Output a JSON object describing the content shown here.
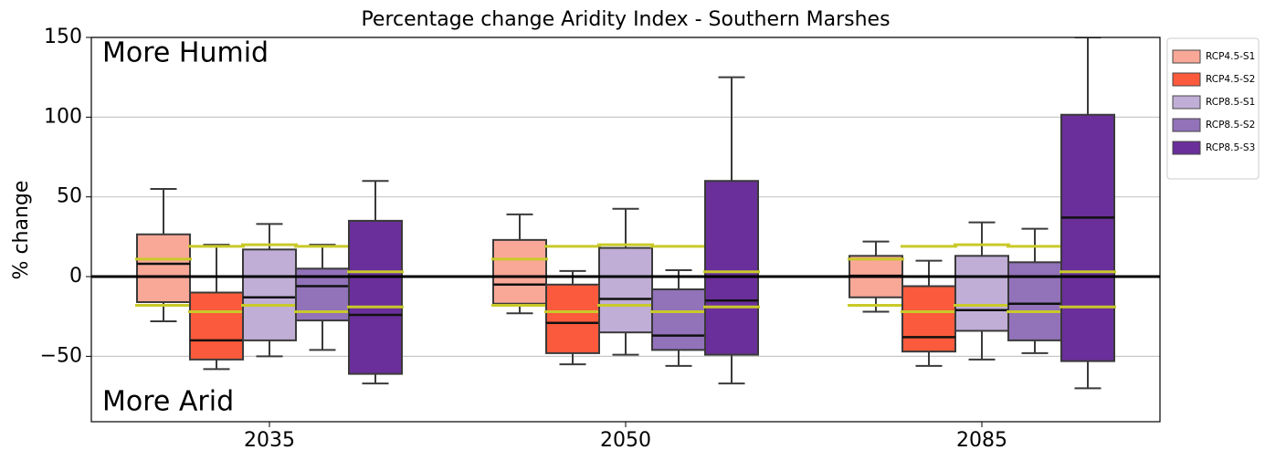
{
  "chart_data": {
    "type": "box",
    "title": "Percentage change Aridity Index - Southern Marshes",
    "ylabel": "% change",
    "annotations": [
      {
        "text": "More Humid",
        "color": "#3a9467"
      },
      {
        "text": "More Arid",
        "color": "#d98a4b"
      }
    ],
    "categories": [
      "2035",
      "2050",
      "2085"
    ],
    "ylim": [
      -91,
      150
    ],
    "yticks": [
      {
        "value": -50,
        "label": "−50"
      },
      0,
      50,
      100,
      150
    ],
    "grid": true,
    "reference_line": 0,
    "legend": "outside-upper-right",
    "series": [
      {
        "name": "RCP4.5-S1",
        "color": "#f9a898",
        "whisker_low": [
          -28,
          -23,
          -22
        ],
        "q1": [
          -16,
          -17,
          -13
        ],
        "median": [
          8,
          -5,
          0.5
        ],
        "q3": [
          26.5,
          23,
          13
        ],
        "whisker_high": [
          55,
          39,
          22
        ],
        "reference_upper": [
          11,
          11,
          11
        ],
        "reference_lower": [
          -18,
          -18,
          -18
        ]
      },
      {
        "name": "RCP4.5-S2",
        "color": "#fc5a3c",
        "whisker_low": [
          -58,
          -55,
          -56
        ],
        "q1": [
          -52,
          -48,
          -47
        ],
        "median": [
          -40,
          -29,
          -38
        ],
        "q3": [
          -10,
          -5,
          -6
        ],
        "whisker_high": [
          20,
          3.5,
          10
        ],
        "reference_upper": [
          19,
          19,
          19
        ],
        "reference_lower": [
          -22,
          -22,
          -22
        ]
      },
      {
        "name": "RCP8.5-S1",
        "color": "#c0aed6",
        "whisker_low": [
          -50,
          -49,
          -52
        ],
        "q1": [
          -40,
          -35,
          -34
        ],
        "median": [
          -13,
          -14,
          -21
        ],
        "q3": [
          17,
          18,
          13
        ],
        "whisker_high": [
          33,
          42.5,
          34
        ],
        "reference_upper": [
          20,
          20,
          20
        ],
        "reference_lower": [
          -18,
          -18,
          -18
        ]
      },
      {
        "name": "RCP8.5-S2",
        "color": "#9272b9",
        "whisker_low": [
          -46,
          -56,
          -48
        ],
        "q1": [
          -27.5,
          -46,
          -40
        ],
        "median": [
          -6,
          -37,
          -17
        ],
        "q3": [
          5,
          -8,
          9
        ],
        "whisker_high": [
          20,
          4,
          30
        ],
        "reference_upper": [
          19,
          19,
          19
        ],
        "reference_lower": [
          -22,
          -22,
          -22
        ]
      },
      {
        "name": "RCP8.5-S3",
        "color": "#6a2f9a",
        "whisker_low": [
          -67,
          -67,
          -70
        ],
        "q1": [
          -61,
          -49,
          -53
        ],
        "median": [
          -24,
          -15,
          37
        ],
        "q3": [
          35,
          60,
          101.5
        ],
        "whisker_high": [
          60,
          125,
          150
        ],
        "reference_upper": [
          3,
          3,
          3
        ],
        "reference_lower": [
          -19,
          -19,
          -19
        ]
      }
    ]
  }
}
